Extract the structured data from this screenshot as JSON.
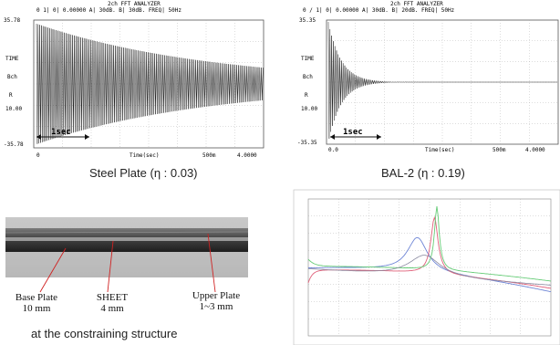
{
  "panel_steel": {
    "header_title": "2ch FFT ANALYZER",
    "header_line": "0    1|   0| 0.00000 A| 30dB. B| 30dB. FREQ|  50Hz",
    "y_top": "35.78",
    "y_mid_time": "TIME",
    "y_mid_ch": "Bch",
    "y_mid_r": "R",
    "y_ten": "10.00",
    "y_bot": "-35.78",
    "x_start": "0",
    "x_time": "Time(sec)",
    "x_ms": "500m",
    "x_end": "4.0000",
    "arrow_label": "1sec",
    "caption": "Steel Plate (η : 0.03)"
  },
  "panel_bal": {
    "header_title": "2ch FFT ANALYZER",
    "header_line": "0 /   1|  0| 0.00000 A| 30dB. B| 20dB. FREQ|  50Hz",
    "y_top": "35.35",
    "y_mid_time": "TIME",
    "y_mid_ch": "Bch",
    "y_mid_r": "R",
    "y_ten": "10.00",
    "y_bot": "-35.35",
    "x_start": "0.0",
    "x_time": "Time(sec)",
    "x_ms": "500m",
    "x_end": "4.0000",
    "arrow_label": "1sec",
    "caption": "BAL-2 (η : 0.19)"
  },
  "photo": {
    "label_base": "Base Plate",
    "label_base_dim": "10 mm",
    "label_sheet": "SHEET",
    "label_sheet_dim": "4 mm",
    "label_upper": "Upper Plate",
    "label_upper_dim": "1~3 mm",
    "caption": "at the constraining structure"
  },
  "colors": {
    "line_blue": "#6f86d6",
    "line_red": "#e0607a",
    "line_green": "#66cc77",
    "line_gray": "#8a8aa0",
    "frame": "#555555",
    "trace": "#222222"
  }
}
